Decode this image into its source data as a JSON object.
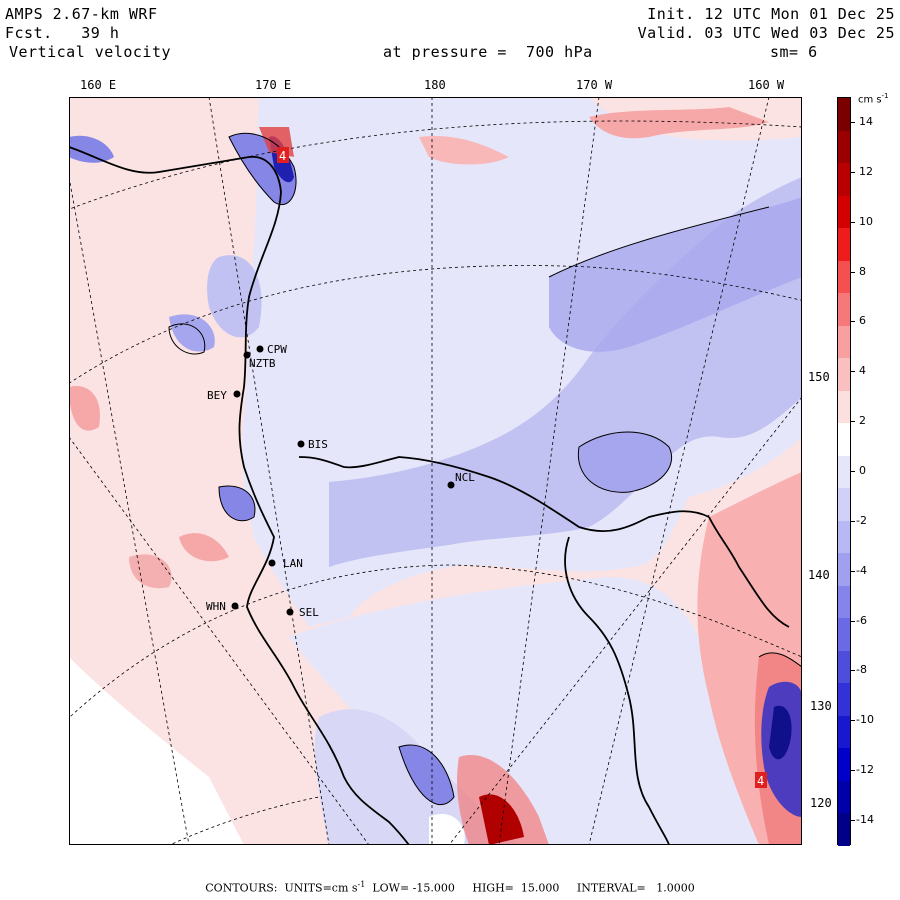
{
  "header": {
    "model": "AMPS 2.67-km WRF",
    "fcst_label": "Fcst.",
    "fcst_hours": "39 h",
    "field": "Vertical velocity",
    "init": "Init. 12 UTC Mon 01 Dec 25",
    "valid": "Valid. 03 UTC Wed 03 Dec 25",
    "level": "at pressure =  700 hPa",
    "smoothing": "sm= 6"
  },
  "top_ticks": [
    "160 E",
    "170 E",
    "180",
    "170 W",
    "160 W"
  ],
  "right_ticks": [
    "150 W",
    "140 W",
    "130 W",
    "120 W"
  ],
  "colorbar": {
    "units": "cm s",
    "units_exp": "-1",
    "labels": [
      "14",
      "12",
      "10",
      "8",
      "6",
      "4",
      "2",
      "0",
      "-2",
      "-4",
      "-6",
      "-8",
      "-10",
      "-12",
      "-14"
    ],
    "min": -15,
    "max": 15,
    "colors": [
      "#7a0000",
      "#9a0000",
      "#b80000",
      "#d40000",
      "#ee1c1c",
      "#f45050",
      "#f67878",
      "#f8a0a0",
      "#fac0c0",
      "#fce0e0",
      "#ffffff",
      "#e6e6fa",
      "#d0d0f8",
      "#b8b8f4",
      "#a0a0ef",
      "#8484ea",
      "#6a6ae4",
      "#4e4edd",
      "#3232d6",
      "#1818cf",
      "#0000c8",
      "#0000a8",
      "#000088"
    ]
  },
  "stations": [
    {
      "id": "CPW",
      "label": "CPW"
    },
    {
      "id": "NZTB",
      "label": "NZTB"
    },
    {
      "id": "BEY",
      "label": "BEY"
    },
    {
      "id": "BIS",
      "label": "BIS"
    },
    {
      "id": "NCL",
      "label": "NCL"
    },
    {
      "id": "LAN",
      "label": "LAN"
    },
    {
      "id": "WHN",
      "label": "WHN"
    },
    {
      "id": "SEL",
      "label": "SEL"
    }
  ],
  "extrema": [
    "4",
    "4"
  ],
  "footer": {
    "prefix": "CONTOURS:  UNITS=cm s",
    "exp": "-1",
    "rest": "  LOW= -15.000     HIGH=  15.000     INTERVAL=   1.0000"
  }
}
